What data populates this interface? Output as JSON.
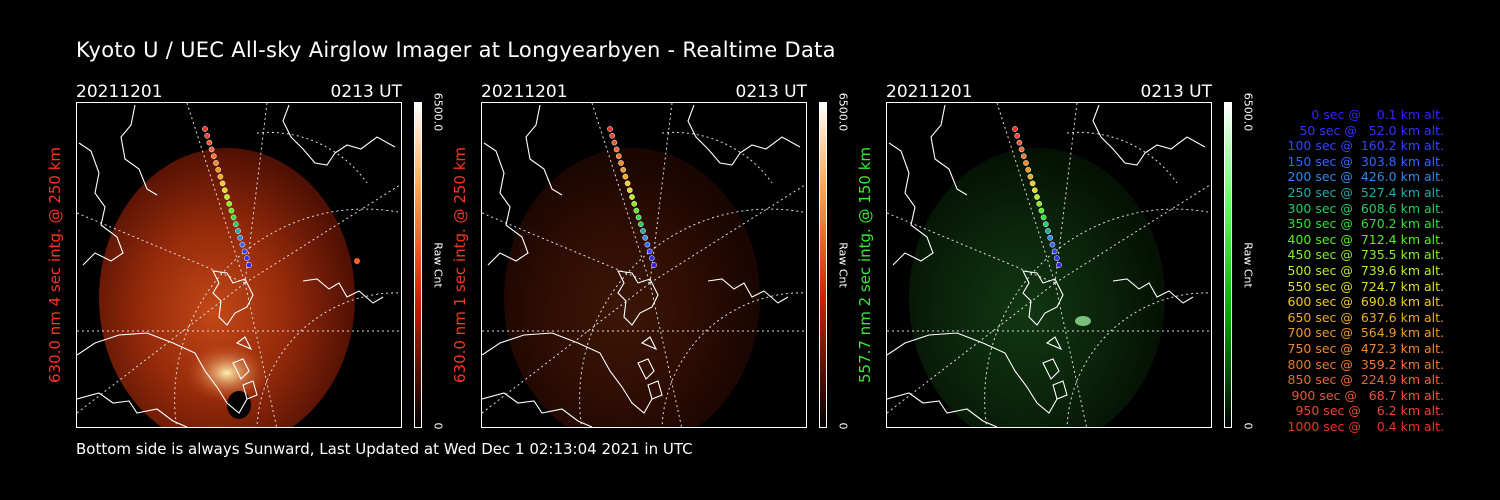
{
  "title": "Kyoto U / UEC All-sky Airglow Imager at Longyearbyen - Realtime Data",
  "footer": "Bottom side is always Sunward, Last Updated at Wed Dec  1 02:13:04 2021 in UTC",
  "panels": [
    {
      "date": "20211201",
      "time": "0213 UT",
      "ylabel": "630.0 nm 4 sec intg. @ 250 km",
      "ylabel_color": "#ff3322",
      "cbar_max": "6500.0",
      "cbar_min": "0",
      "cbar_unit": "Raw Cnt",
      "cmap": "red",
      "brightness": 0.9
    },
    {
      "date": "20211201",
      "time": "0213 UT",
      "ylabel": "630.0 nm 1 sec intg. @ 250 km",
      "ylabel_color": "#ff3322",
      "cbar_max": "6500.0",
      "cbar_min": "0",
      "cbar_unit": "Raw Cnt",
      "cmap": "red",
      "brightness": 0.28
    },
    {
      "date": "20211201",
      "time": "0213 UT",
      "ylabel": "557.7 nm 2 sec intg. @ 150 km",
      "ylabel_color": "#33ee33",
      "cbar_max": "6500.0",
      "cbar_min": "0",
      "cbar_unit": "Raw Cnt",
      "cmap": "green",
      "brightness": 0.4
    }
  ],
  "trajectory_legend": [
    {
      "text": "   0 sec @    0.1 km alt.",
      "color": "#3322ff"
    },
    {
      "text": "  50 sec @   52.0 km alt.",
      "color": "#3333ff"
    },
    {
      "text": " 100 sec @  160.2 km alt.",
      "color": "#3344ff"
    },
    {
      "text": " 150 sec @  303.8 km alt.",
      "color": "#3366ff"
    },
    {
      "text": " 200 sec @  426.0 km alt.",
      "color": "#3388ee"
    },
    {
      "text": " 250 sec @  527.4 km alt.",
      "color": "#22aaaa"
    },
    {
      "text": " 300 sec @  608.6 km alt.",
      "color": "#22cc66"
    },
    {
      "text": " 350 sec @  670.2 km alt.",
      "color": "#33dd33"
    },
    {
      "text": " 400 sec @  712.4 km alt.",
      "color": "#55ee22"
    },
    {
      "text": " 450 sec @  735.5 km alt.",
      "color": "#88ee22"
    },
    {
      "text": " 500 sec @  739.6 km alt.",
      "color": "#bbee22"
    },
    {
      "text": " 550 sec @  724.7 km alt.",
      "color": "#dddd22"
    },
    {
      "text": " 600 sec @  690.8 km alt.",
      "color": "#eecc22"
    },
    {
      "text": " 650 sec @  637.6 km alt.",
      "color": "#eeaa22"
    },
    {
      "text": " 700 sec @  564.9 km alt.",
      "color": "#ee9922"
    },
    {
      "text": " 750 sec @  472.3 km alt.",
      "color": "#ee8833"
    },
    {
      "text": " 800 sec @  359.2 km alt.",
      "color": "#ee7733"
    },
    {
      "text": " 850 sec @  224.9 km alt.",
      "color": "#ee6633"
    },
    {
      "text": " 900 sec @   68.7 km alt.",
      "color": "#ee5533"
    },
    {
      "text": " 950 sec @    6.2 km alt.",
      "color": "#ee4433"
    },
    {
      "text": "1000 sec @    0.4 km alt.",
      "color": "#ee3322"
    }
  ]
}
